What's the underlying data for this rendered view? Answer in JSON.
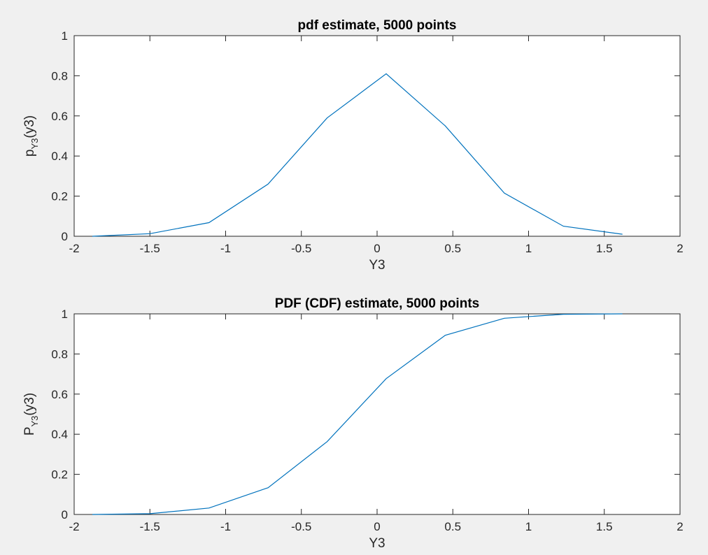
{
  "chart_data": [
    {
      "type": "line",
      "title": "pdf estimate, 5000 points",
      "xlabel": "Y3",
      "ylabel": {
        "main": "p",
        "sub": "Y3",
        "tail": "(y3)"
      },
      "xlim": [
        -2,
        2
      ],
      "ylim": [
        0,
        1
      ],
      "xticks": [
        -2,
        -1.5,
        -1,
        -0.5,
        0,
        0.5,
        1,
        1.5,
        2
      ],
      "xtick_labels": [
        "-2",
        "-1.5",
        "-1",
        "-0.5",
        "0",
        "0.5",
        "1",
        "1.5",
        "2"
      ],
      "yticks": [
        0,
        0.2,
        0.4,
        0.6,
        0.8,
        1
      ],
      "ytick_labels": [
        "0",
        "0.2",
        "0.4",
        "0.6",
        "0.8",
        "1"
      ],
      "grid": false,
      "color": "#0072bd",
      "x": [
        -1.88,
        -1.5,
        -1.11,
        -0.72,
        -0.33,
        0.06,
        0.45,
        0.84,
        1.23,
        1.62
      ],
      "y": [
        0.0,
        0.013,
        0.068,
        0.26,
        0.59,
        0.81,
        0.55,
        0.215,
        0.05,
        0.01
      ]
    },
    {
      "type": "line",
      "title": "PDF (CDF) estimate, 5000 points",
      "xlabel": "Y3",
      "ylabel": {
        "main": "P",
        "sub": "Y3",
        "tail": "(y3)"
      },
      "xlim": [
        -2,
        2
      ],
      "ylim": [
        0,
        1
      ],
      "xticks": [
        -2,
        -1.5,
        -1,
        -0.5,
        0,
        0.5,
        1,
        1.5,
        2
      ],
      "xtick_labels": [
        "-2",
        "-1.5",
        "-1",
        "-0.5",
        "0",
        "0.5",
        "1",
        "1.5",
        "2"
      ],
      "yticks": [
        0,
        0.2,
        0.4,
        0.6,
        0.8,
        1
      ],
      "ytick_labels": [
        "0",
        "0.2",
        "0.4",
        "0.6",
        "0.8",
        "1"
      ],
      "grid": false,
      "color": "#0072bd",
      "x": [
        -1.88,
        -1.5,
        -1.11,
        -0.72,
        -0.33,
        0.06,
        0.45,
        0.84,
        1.23,
        1.62
      ],
      "y": [
        0.0,
        0.004,
        0.032,
        0.133,
        0.363,
        0.677,
        0.893,
        0.978,
        0.998,
        1.0
      ]
    }
  ]
}
